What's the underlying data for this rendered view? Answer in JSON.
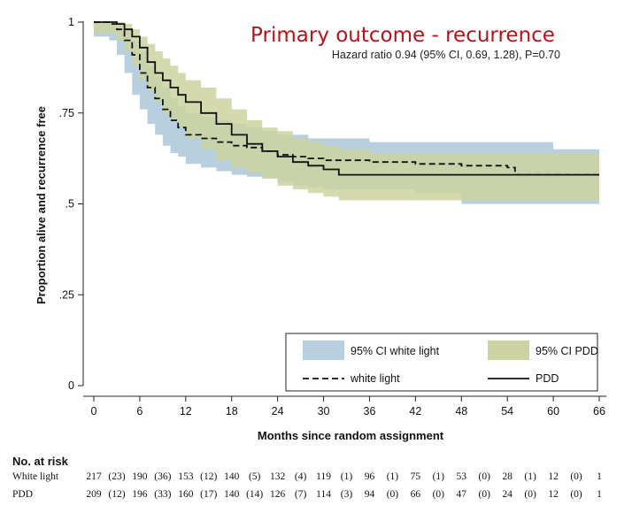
{
  "chart_data": {
    "type": "line",
    "title": "Primary outcome - recurrence",
    "subtitle": "Hazard ratio 0.94 (95% CI, 0.69, 1.28), P=0.70",
    "xlabel": "Months since random assignment",
    "ylabel": "Proportion alive and recurrence free",
    "xlim": [
      0,
      66
    ],
    "ylim": [
      0,
      1
    ],
    "xticks": [
      0,
      6,
      12,
      18,
      24,
      30,
      36,
      42,
      48,
      54,
      60,
      66
    ],
    "yticks": [
      0,
      0.25,
      0.5,
      0.75,
      1
    ],
    "ytick_labels": [
      "0",
      ".25",
      ".5",
      ".75",
      "1"
    ],
    "series": [
      {
        "name": "white light",
        "style": "dashed",
        "color": "#111111",
        "x": [
          0,
          2,
          3,
          4,
          5,
          6,
          7,
          8,
          9,
          10,
          11,
          12,
          14,
          16,
          18,
          20,
          22,
          24,
          26,
          28,
          30,
          36,
          42,
          48,
          54,
          55,
          66
        ],
        "y": [
          1,
          0.995,
          0.98,
          0.95,
          0.91,
          0.86,
          0.82,
          0.79,
          0.76,
          0.73,
          0.71,
          0.69,
          0.68,
          0.67,
          0.66,
          0.655,
          0.645,
          0.635,
          0.63,
          0.625,
          0.62,
          0.615,
          0.61,
          0.605,
          0.6,
          0.58,
          0.58
        ]
      },
      {
        "name": "PDD",
        "style": "solid",
        "color": "#111111",
        "x": [
          0,
          3,
          4,
          5,
          6,
          7,
          8,
          9,
          10,
          11,
          12,
          14,
          16,
          18,
          20,
          22,
          24,
          26,
          28,
          30,
          32,
          36,
          42,
          48,
          54,
          60,
          66
        ],
        "y": [
          1,
          0.995,
          0.98,
          0.96,
          0.93,
          0.89,
          0.86,
          0.84,
          0.82,
          0.8,
          0.78,
          0.75,
          0.72,
          0.69,
          0.665,
          0.645,
          0.63,
          0.615,
          0.605,
          0.595,
          0.58,
          0.58,
          0.58,
          0.58,
          0.58,
          0.58,
          0.58
        ]
      }
    ],
    "ci_bands": [
      {
        "name": "95% CI white light",
        "color": "#b7cfde",
        "x": [
          0,
          2,
          3,
          4,
          5,
          6,
          7,
          8,
          9,
          10,
          11,
          12,
          14,
          16,
          18,
          20,
          22,
          24,
          26,
          28,
          30,
          36,
          42,
          48,
          54,
          60,
          66
        ],
        "upper": [
          1,
          1,
          0.995,
          0.98,
          0.95,
          0.92,
          0.88,
          0.85,
          0.82,
          0.79,
          0.77,
          0.75,
          0.74,
          0.73,
          0.72,
          0.71,
          0.7,
          0.69,
          0.69,
          0.68,
          0.68,
          0.67,
          0.67,
          0.67,
          0.67,
          0.65,
          0.65
        ],
        "lower": [
          0.97,
          0.96,
          0.95,
          0.91,
          0.86,
          0.8,
          0.76,
          0.72,
          0.69,
          0.66,
          0.64,
          0.63,
          0.61,
          0.6,
          0.59,
          0.58,
          0.575,
          0.57,
          0.56,
          0.55,
          0.545,
          0.54,
          0.54,
          0.53,
          0.5,
          0.5,
          0.5
        ]
      },
      {
        "name": "95% CI PDD",
        "color": "#cdd3a0",
        "x": [
          0,
          3,
          4,
          5,
          6,
          7,
          8,
          9,
          10,
          11,
          12,
          14,
          16,
          18,
          20,
          22,
          24,
          26,
          28,
          30,
          32,
          36,
          42,
          48,
          54,
          60,
          66
        ],
        "upper": [
          1,
          1,
          0.995,
          0.98,
          0.96,
          0.94,
          0.92,
          0.9,
          0.88,
          0.86,
          0.84,
          0.82,
          0.79,
          0.76,
          0.73,
          0.71,
          0.7,
          0.68,
          0.67,
          0.66,
          0.65,
          0.64,
          0.64,
          0.64,
          0.64,
          0.64,
          0.64
        ],
        "lower": [
          0.98,
          0.97,
          0.95,
          0.92,
          0.88,
          0.84,
          0.81,
          0.78,
          0.75,
          0.73,
          0.71,
          0.68,
          0.65,
          0.62,
          0.6,
          0.585,
          0.57,
          0.55,
          0.54,
          0.53,
          0.52,
          0.51,
          0.51,
          0.51,
          0.51,
          0.51,
          0.51
        ]
      }
    ],
    "legend": {
      "placement": "bottom-right",
      "entries": [
        {
          "label": "95% CI white light",
          "kind": "fill",
          "color": "#b7cfde"
        },
        {
          "label": "95% CI PDD",
          "kind": "fill",
          "color": "#cdd3a0"
        },
        {
          "label": "white light",
          "kind": "dashed"
        },
        {
          "label": "PDD",
          "kind": "solid"
        }
      ]
    },
    "risk_table": {
      "title": "No. at risk",
      "rows": [
        {
          "label": "White light",
          "values": [
            "217",
            "(23)",
            "190",
            "(36)",
            "153",
            "(12)",
            "140",
            "(5)",
            "132",
            "(4)",
            "119",
            "(1)",
            "96",
            "(1)",
            "75",
            "(1)",
            "53",
            "(0)",
            "28",
            "(1)",
            "12",
            "(0)",
            "1"
          ]
        },
        {
          "label": "PDD",
          "values": [
            "209",
            "(12)",
            "196",
            "(33)",
            "160",
            "(17)",
            "140",
            "(14)",
            "126",
            "(7)",
            "114",
            "(3)",
            "94",
            "(0)",
            "66",
            "(0)",
            "47",
            "(0)",
            "24",
            "(0)",
            "12",
            "(0)",
            "1"
          ]
        }
      ]
    }
  }
}
